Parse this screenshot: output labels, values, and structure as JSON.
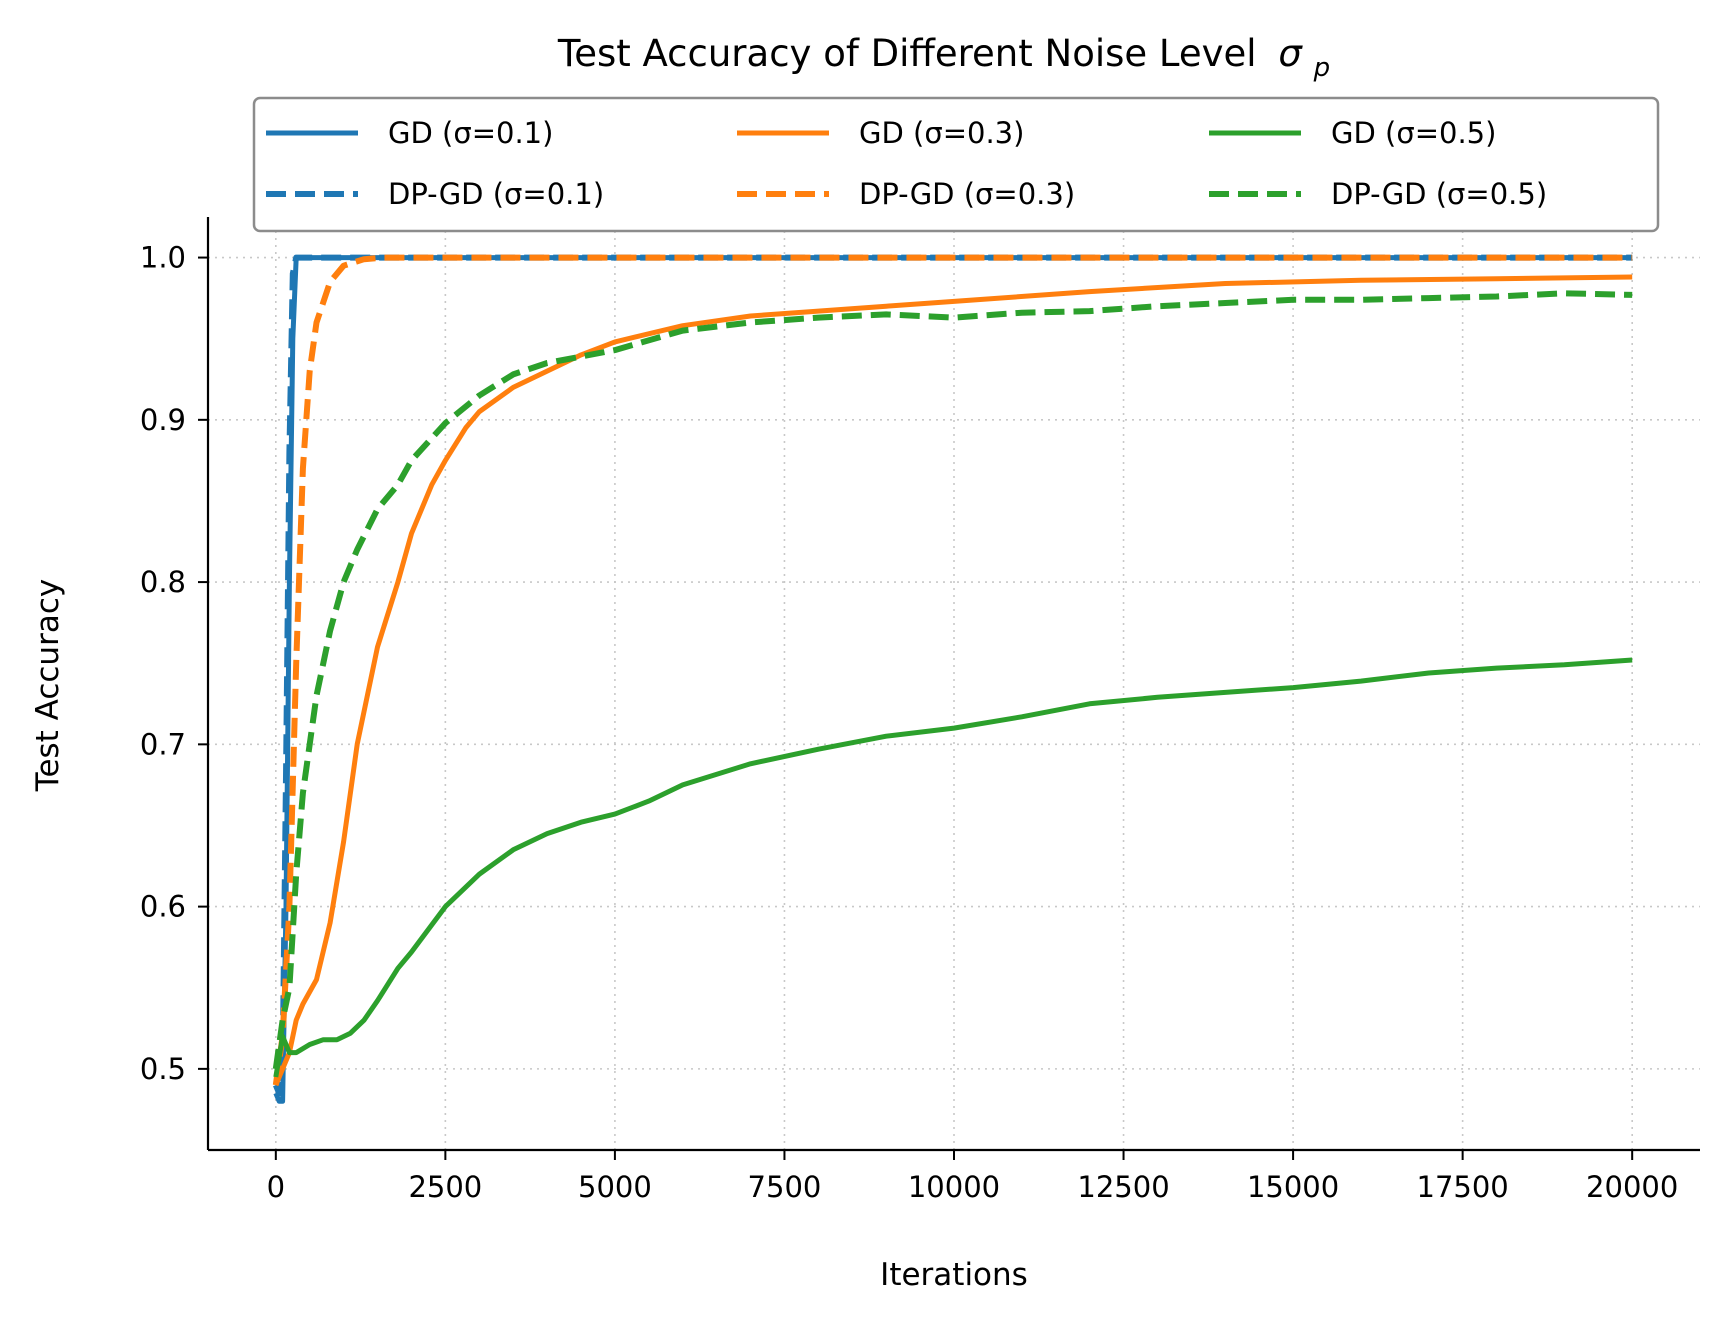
{
  "chart_data": {
    "type": "line",
    "title": "Test Accuracy of Different Noise Level",
    "title_symbol": "σ",
    "title_subscript": "p",
    "xlabel": "Iterations",
    "ylabel": "Test Accuracy",
    "xlim": [
      -1000,
      21000
    ],
    "ylim": [
      0.45,
      1.025
    ],
    "xticks": [
      0,
      2500,
      5000,
      7500,
      10000,
      12500,
      15000,
      17500,
      20000
    ],
    "xtick_labels": [
      "0",
      "2500",
      "5000",
      "7500",
      "10000",
      "12500",
      "15000",
      "17500",
      "20000"
    ],
    "yticks": [
      0.5,
      0.6,
      0.7,
      0.8,
      0.9,
      1.0
    ],
    "ytick_labels": [
      "0.5",
      "0.6",
      "0.7",
      "0.8",
      "0.9",
      "1.0"
    ],
    "grid": true,
    "legend_position": "top-center",
    "legend_columns": 3,
    "series": [
      {
        "name": "GD (σ=0.1)",
        "color": "#1f77b4",
        "style": "solid",
        "x": [
          0,
          50,
          100,
          150,
          200,
          250,
          300,
          400,
          1000,
          5000,
          10000,
          15000,
          20000
        ],
        "y": [
          0.485,
          0.48,
          0.48,
          0.6,
          0.8,
          0.95,
          1.0,
          1.0,
          1.0,
          1.0,
          1.0,
          1.0,
          1.0
        ]
      },
      {
        "name": "DP-GD (σ=0.1)",
        "color": "#1f77b4",
        "style": "dashed",
        "x": [
          0,
          50,
          100,
          150,
          200,
          250,
          300,
          400,
          1000,
          5000,
          10000,
          15000,
          20000
        ],
        "y": [
          0.49,
          0.485,
          0.5,
          0.68,
          0.88,
          0.99,
          1.0,
          1.0,
          1.0,
          1.0,
          1.0,
          1.0,
          1.0
        ]
      },
      {
        "name": "GD (σ=0.3)",
        "color": "#ff7f0e",
        "style": "solid",
        "x": [
          0,
          100,
          200,
          300,
          400,
          600,
          800,
          1000,
          1200,
          1500,
          1800,
          2000,
          2300,
          2500,
          2800,
          3000,
          3500,
          4000,
          4500,
          5000,
          6000,
          7000,
          8000,
          9000,
          10000,
          12000,
          14000,
          16000,
          18000,
          20000
        ],
        "y": [
          0.49,
          0.5,
          0.51,
          0.53,
          0.54,
          0.555,
          0.59,
          0.64,
          0.7,
          0.76,
          0.8,
          0.83,
          0.86,
          0.875,
          0.895,
          0.905,
          0.92,
          0.93,
          0.94,
          0.948,
          0.958,
          0.964,
          0.967,
          0.97,
          0.973,
          0.979,
          0.984,
          0.986,
          0.987,
          0.988
        ]
      },
      {
        "name": "DP-GD (σ=0.3)",
        "color": "#ff7f0e",
        "style": "dashed",
        "x": [
          0,
          100,
          200,
          300,
          400,
          500,
          600,
          800,
          1000,
          1300,
          1600,
          2000,
          5000,
          10000,
          15000,
          20000
        ],
        "y": [
          0.49,
          0.52,
          0.6,
          0.75,
          0.87,
          0.93,
          0.96,
          0.985,
          0.995,
          0.999,
          1.0,
          1.0,
          1.0,
          1.0,
          1.0,
          1.0
        ]
      },
      {
        "name": "GD (σ=0.5)",
        "color": "#2ca02c",
        "style": "solid",
        "x": [
          0,
          100,
          200,
          300,
          500,
          700,
          900,
          1100,
          1300,
          1500,
          1800,
          2000,
          2500,
          3000,
          3500,
          4000,
          4500,
          5000,
          5500,
          6000,
          7000,
          8000,
          9000,
          10000,
          11000,
          12000,
          13000,
          14000,
          15000,
          16000,
          17000,
          18000,
          19000,
          20000
        ],
        "y": [
          0.495,
          0.52,
          0.51,
          0.51,
          0.515,
          0.518,
          0.518,
          0.522,
          0.53,
          0.542,
          0.562,
          0.572,
          0.6,
          0.62,
          0.635,
          0.645,
          0.652,
          0.657,
          0.665,
          0.675,
          0.688,
          0.697,
          0.705,
          0.71,
          0.717,
          0.725,
          0.729,
          0.732,
          0.735,
          0.739,
          0.744,
          0.747,
          0.749,
          0.752
        ]
      },
      {
        "name": "DP-GD (σ=0.5)",
        "color": "#2ca02c",
        "style": "dashed",
        "x": [
          0,
          100,
          200,
          300,
          400,
          500,
          600,
          700,
          800,
          1000,
          1200,
          1500,
          1800,
          2000,
          2500,
          3000,
          3500,
          4000,
          5000,
          6000,
          7000,
          8000,
          9000,
          10000,
          11000,
          12000,
          13000,
          14000,
          15000,
          16000,
          17000,
          18000,
          19000,
          20000
        ],
        "y": [
          0.5,
          0.53,
          0.55,
          0.62,
          0.67,
          0.7,
          0.73,
          0.75,
          0.77,
          0.8,
          0.82,
          0.845,
          0.86,
          0.875,
          0.898,
          0.915,
          0.928,
          0.935,
          0.943,
          0.955,
          0.96,
          0.963,
          0.965,
          0.963,
          0.966,
          0.967,
          0.97,
          0.972,
          0.974,
          0.974,
          0.975,
          0.976,
          0.978,
          0.977
        ]
      }
    ]
  }
}
